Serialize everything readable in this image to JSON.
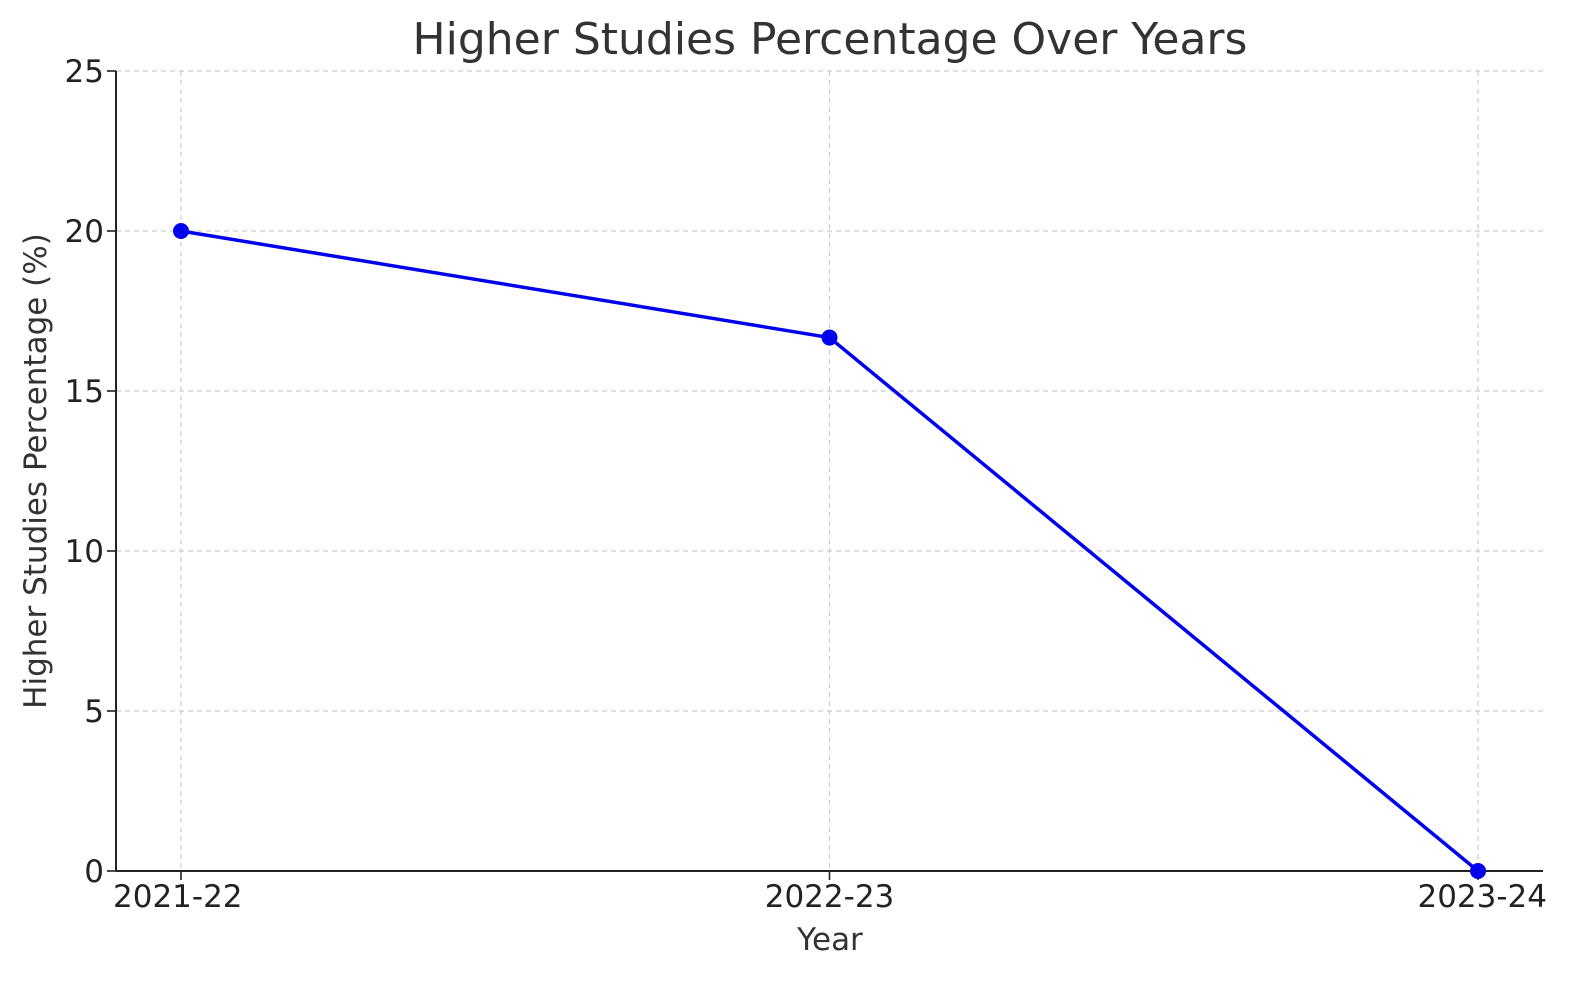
{
  "chart_data": {
    "type": "line",
    "title": "Higher Studies Percentage Over Years",
    "xlabel": "Year",
    "ylabel": "Higher Studies Percentage (%)",
    "categories": [
      "2021-22",
      "2022-23",
      "2023-24"
    ],
    "series": [
      {
        "values": [
          20.0,
          16.67,
          0.0
        ],
        "color": "#0000ee",
        "marker": "circle"
      }
    ],
    "ylim": [
      0,
      25
    ],
    "yticks": [
      0,
      5,
      10,
      15,
      20,
      25
    ],
    "grid": true,
    "grid_style": "dashed",
    "legend": false
  }
}
